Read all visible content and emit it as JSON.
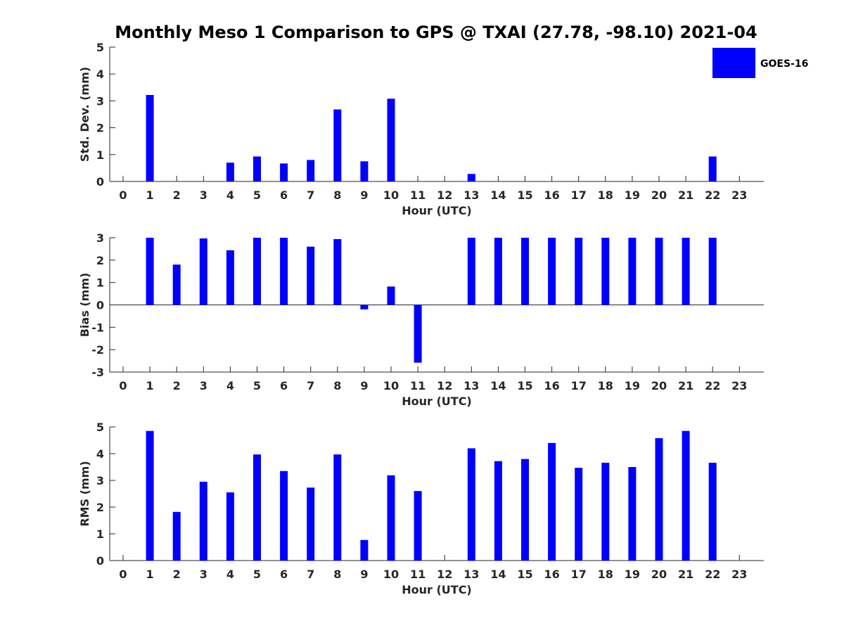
{
  "chart_data": {
    "title": "Monthly Meso 1 Comparison to GPS @ TXAI (27.78, -98.10) 2021-04",
    "legend": {
      "label": "GOES-16",
      "color": "#0000ff",
      "placement": "top-right"
    },
    "bar_color": "#0000ff",
    "panels": [
      {
        "type": "bar",
        "xlabel": "Hour (UTC)",
        "ylabel": "Std. Dev. (mm)",
        "ylim": [
          0,
          5
        ],
        "yticks": [
          "0",
          "1",
          "2",
          "3",
          "4",
          "5"
        ],
        "categories": [
          "0",
          "1",
          "2",
          "3",
          "4",
          "5",
          "6",
          "7",
          "8",
          "9",
          "10",
          "11",
          "12",
          "13",
          "14",
          "15",
          "16",
          "17",
          "18",
          "19",
          "20",
          "21",
          "22",
          "23"
        ],
        "values": [
          null,
          3.22,
          null,
          null,
          0.7,
          0.93,
          0.67,
          0.8,
          2.68,
          0.75,
          3.08,
          null,
          null,
          0.28,
          null,
          null,
          null,
          null,
          null,
          null,
          null,
          null,
          0.93,
          null
        ]
      },
      {
        "type": "bar",
        "xlabel": "Hour (UTC)",
        "ylabel": "Bias (mm)",
        "ylim": [
          -3,
          3
        ],
        "yticks": [
          "-3",
          "-2",
          "-1",
          "0",
          "1",
          "2",
          "3"
        ],
        "categories": [
          "0",
          "1",
          "2",
          "3",
          "4",
          "5",
          "6",
          "7",
          "8",
          "9",
          "10",
          "11",
          "12",
          "13",
          "14",
          "15",
          "16",
          "17",
          "18",
          "19",
          "20",
          "21",
          "22",
          "23"
        ],
        "values": [
          null,
          3.0,
          1.8,
          2.97,
          2.44,
          3.0,
          3.0,
          2.6,
          2.94,
          -0.2,
          0.82,
          -2.58,
          null,
          3.0,
          3.0,
          3.0,
          3.0,
          3.0,
          3.0,
          3.0,
          3.0,
          3.0,
          3.0,
          null
        ]
      },
      {
        "type": "bar",
        "xlabel": "Hour (UTC)",
        "ylabel": "RMS (mm)",
        "ylim": [
          0,
          5
        ],
        "yticks": [
          "0",
          "1",
          "2",
          "3",
          "4",
          "5"
        ],
        "categories": [
          "0",
          "1",
          "2",
          "3",
          "4",
          "5",
          "6",
          "7",
          "8",
          "9",
          "10",
          "11",
          "12",
          "13",
          "14",
          "15",
          "16",
          "17",
          "18",
          "19",
          "20",
          "21",
          "22",
          "23"
        ],
        "values": [
          null,
          4.85,
          1.82,
          2.95,
          2.55,
          3.97,
          3.35,
          2.73,
          3.97,
          0.77,
          3.19,
          2.6,
          null,
          4.2,
          3.72,
          3.8,
          4.4,
          3.47,
          3.66,
          3.5,
          4.58,
          4.85,
          3.66,
          null
        ]
      }
    ]
  }
}
